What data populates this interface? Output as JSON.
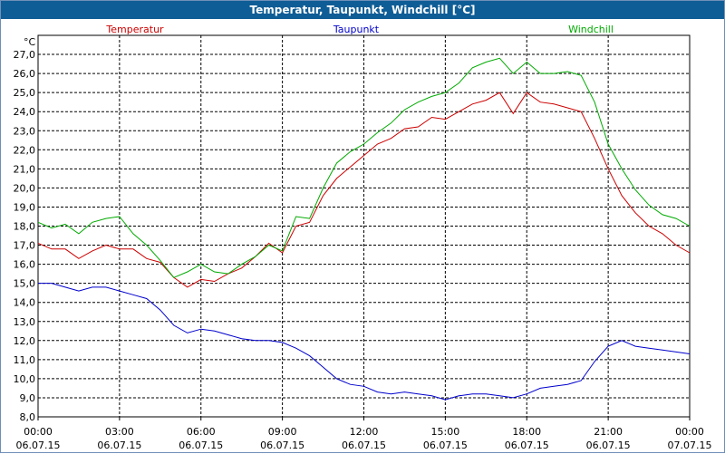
{
  "chart_data": {
    "type": "line",
    "title": "Temperatur, Taupunkt, Windchill [°C]",
    "ylabel": "°C",
    "ylim": [
      8.0,
      28.0
    ],
    "yticks": [
      "8,0",
      "9,0",
      "10,0",
      "11,0",
      "12,0",
      "13,0",
      "14,0",
      "15,0",
      "16,0",
      "17,0",
      "18,0",
      "19,0",
      "20,0",
      "21,0",
      "22,0",
      "23,0",
      "24,0",
      "25,0",
      "26,0",
      "27,0"
    ],
    "xlim": [
      0,
      24
    ],
    "xticks": [
      {
        "time": "00:00",
        "date": "06.07.15"
      },
      {
        "time": "03:00",
        "date": "06.07.15"
      },
      {
        "time": "06:00",
        "date": "06.07.15"
      },
      {
        "time": "09:00",
        "date": "06.07.15"
      },
      {
        "time": "12:00",
        "date": "06.07.15"
      },
      {
        "time": "15:00",
        "date": "06.07.15"
      },
      {
        "time": "18:00",
        "date": "06.07.15"
      },
      {
        "time": "21:00",
        "date": "06.07.15"
      },
      {
        "time": "00:00",
        "date": "07.07.15"
      }
    ],
    "grid": true,
    "series": [
      {
        "name": "Temperatur",
        "color": "#cc0000",
        "x": [
          0,
          0.5,
          1,
          1.5,
          2,
          2.5,
          3,
          3.5,
          4,
          4.5,
          5,
          5.5,
          6,
          6.5,
          7,
          7.5,
          8,
          8.5,
          9,
          9.5,
          10,
          10.5,
          11,
          11.5,
          12,
          12.5,
          13,
          13.5,
          14,
          14.5,
          15,
          15.5,
          16,
          16.5,
          17,
          17.5,
          18,
          18.5,
          19,
          19.5,
          20,
          20.5,
          21,
          21.5,
          22,
          22.5,
          23,
          23.5,
          24
        ],
        "values": [
          17.1,
          16.8,
          16.8,
          16.3,
          16.7,
          17.0,
          16.8,
          16.8,
          16.3,
          16.1,
          15.3,
          14.8,
          15.2,
          15.1,
          15.5,
          15.8,
          16.4,
          17.1,
          16.6,
          18.0,
          18.2,
          19.6,
          20.5,
          21.1,
          21.7,
          22.3,
          22.6,
          23.1,
          23.2,
          23.7,
          23.6,
          24.0,
          24.4,
          24.6,
          25.0,
          23.9,
          25.0,
          24.5,
          24.4,
          24.2,
          24.0,
          22.6,
          21.0,
          19.6,
          18.7,
          18.0,
          17.6,
          17.0,
          16.6
        ]
      },
      {
        "name": "Taupunkt",
        "color": "#0000cc",
        "x": [
          0,
          0.5,
          1,
          1.5,
          2,
          2.5,
          3,
          3.5,
          4,
          4.5,
          5,
          5.5,
          6,
          6.5,
          7,
          7.5,
          8,
          8.5,
          9,
          9.5,
          10,
          10.5,
          11,
          11.5,
          12,
          12.5,
          13,
          13.5,
          14,
          14.5,
          15,
          15.5,
          16,
          16.5,
          17,
          17.5,
          18,
          18.5,
          19,
          19.5,
          20,
          20.5,
          21,
          21.5,
          22,
          22.5,
          23,
          23.5,
          24
        ],
        "values": [
          15.0,
          15.0,
          14.8,
          14.6,
          14.8,
          14.8,
          14.6,
          14.4,
          14.2,
          13.6,
          12.8,
          12.4,
          12.6,
          12.5,
          12.3,
          12.1,
          12.0,
          12.0,
          11.9,
          11.6,
          11.2,
          10.6,
          10.0,
          9.7,
          9.6,
          9.3,
          9.2,
          9.3,
          9.2,
          9.1,
          8.9,
          9.1,
          9.2,
          9.2,
          9.1,
          9.0,
          9.2,
          9.5,
          9.6,
          9.7,
          9.9,
          10.9,
          11.7,
          12.0,
          11.7,
          11.6,
          11.5,
          11.4,
          11.3
        ]
      },
      {
        "name": "Windchill",
        "color": "#00aa00",
        "x": [
          0,
          0.5,
          1,
          1.5,
          2,
          2.5,
          3,
          3.5,
          4,
          4.5,
          5,
          5.5,
          6,
          6.5,
          7,
          7.5,
          8,
          8.5,
          9,
          9.5,
          10,
          10.5,
          11,
          11.5,
          12,
          12.5,
          13,
          13.5,
          14,
          14.5,
          15,
          15.5,
          16,
          16.5,
          17,
          17.5,
          18,
          18.5,
          19,
          19.5,
          20,
          20.5,
          21,
          21.5,
          22,
          22.5,
          23,
          23.5,
          24
        ],
        "values": [
          18.2,
          17.9,
          18.1,
          17.6,
          18.2,
          18.4,
          18.5,
          17.6,
          17.0,
          16.2,
          15.3,
          15.6,
          16.0,
          15.6,
          15.5,
          16.0,
          16.4,
          17.0,
          16.7,
          18.5,
          18.4,
          20.0,
          21.3,
          21.9,
          22.3,
          22.9,
          23.4,
          24.1,
          24.5,
          24.8,
          25.0,
          25.5,
          26.3,
          26.6,
          26.8,
          26.0,
          26.6,
          26.0,
          26.0,
          26.1,
          25.9,
          24.5,
          22.3,
          21.0,
          19.9,
          19.1,
          18.6,
          18.4,
          18.0
        ]
      }
    ]
  }
}
